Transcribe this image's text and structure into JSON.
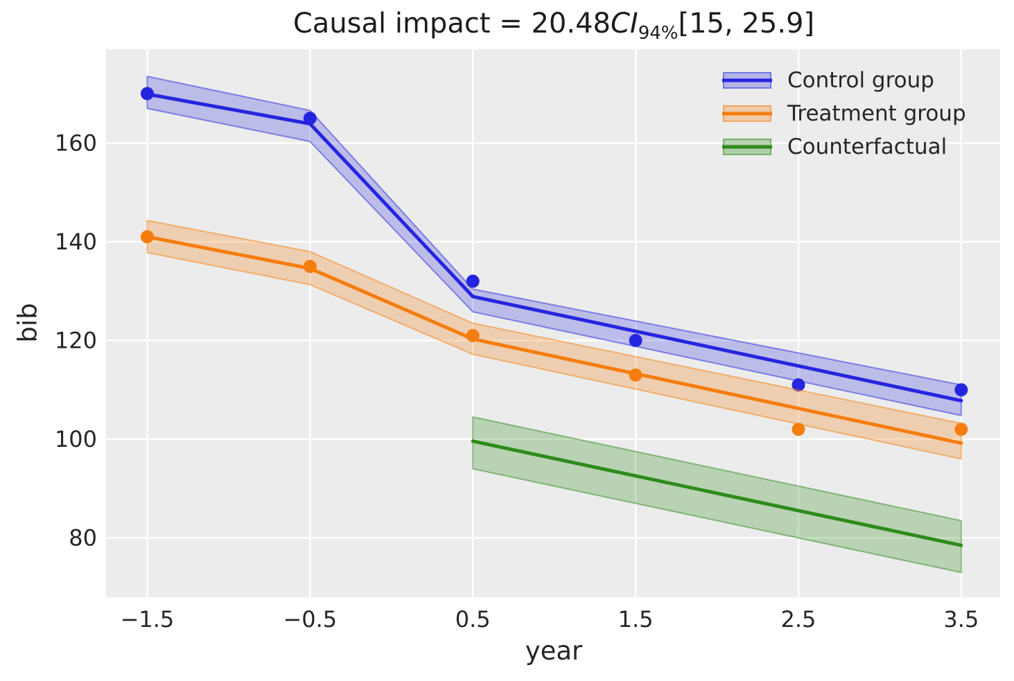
{
  "title": {
    "prefix": "Causal impact = 20.48",
    "ci": "CI",
    "ci_sub": "94%",
    "interval": "[15, 25.9]"
  },
  "chart_data": {
    "type": "line",
    "title": "Causal impact = 20.48 CI 94% [15, 25.9]",
    "xlabel": "year",
    "ylabel": "bib",
    "xlim": [
      -1.753,
      3.739
    ],
    "ylim": [
      68.0,
      179.0
    ],
    "grid": true,
    "legend_position": "upper right",
    "x_ticks": {
      "values": [
        -1.5,
        -0.5,
        0.5,
        1.5,
        2.5,
        3.5
      ],
      "labels": [
        "−1.5",
        "−0.5",
        "0.5",
        "1.5",
        "2.5",
        "3.5"
      ]
    },
    "y_ticks": {
      "values": [
        80,
        100,
        120,
        140,
        160
      ],
      "labels": [
        "80",
        "100",
        "120",
        "140",
        "160"
      ]
    },
    "series": [
      {
        "name": "Control group",
        "color": "#2525df",
        "band_alpha": 0.24,
        "fit_x": [
          -1.5,
          -0.5,
          0.5,
          3.5
        ],
        "fit_y": [
          169.9,
          163.9,
          128.9,
          107.8
        ],
        "band_top": [
          173.5,
          166.6,
          130.4,
          111.0
        ],
        "band_bottom": [
          167.0,
          160.3,
          125.8,
          104.8
        ],
        "points": [
          [
            -1.5,
            170
          ],
          [
            -0.5,
            165
          ],
          [
            0.5,
            132
          ],
          [
            1.5,
            120
          ],
          [
            2.5,
            111
          ],
          [
            3.5,
            110
          ]
        ]
      },
      {
        "name": "Treatment group",
        "color": "#f57d0e",
        "band_alpha": 0.27,
        "fit_x": [
          -1.5,
          -0.5,
          0.5,
          3.5
        ],
        "fit_y": [
          141.0,
          134.6,
          120.3,
          99.2
        ],
        "band_top": [
          144.3,
          138.0,
          123.5,
          103.2
        ],
        "band_bottom": [
          137.8,
          131.3,
          117.2,
          96.0
        ],
        "points": [
          [
            -1.5,
            141
          ],
          [
            -0.5,
            135
          ],
          [
            0.5,
            121
          ],
          [
            1.5,
            113
          ],
          [
            2.5,
            102
          ],
          [
            3.5,
            102
          ]
        ]
      },
      {
        "name": "Counterfactual",
        "color": "#2e8b1b",
        "band_alpha": 0.27,
        "fit_x": [
          0.5,
          3.5
        ],
        "fit_y": [
          99.6,
          78.5
        ],
        "band_top": [
          104.5,
          83.5
        ],
        "band_bottom": [
          94.0,
          73.0
        ],
        "points": []
      }
    ],
    "styles": {
      "figure_bg": "#ffffff",
      "plot_bg": "#ececec",
      "grid_color": "#ffffff",
      "text_color": "#262626",
      "tick_font_px": 32,
      "line_width": 5,
      "marker_radius": 9.5
    }
  }
}
